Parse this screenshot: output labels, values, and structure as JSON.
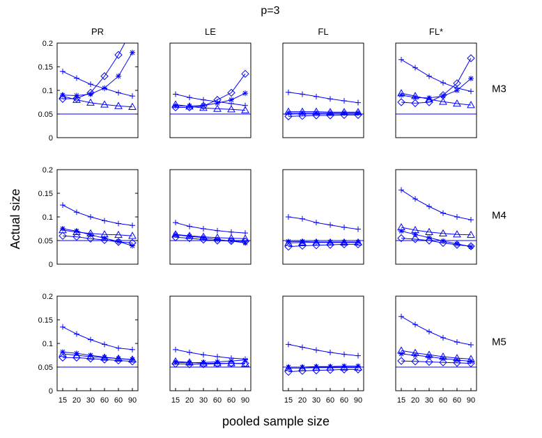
{
  "chart_data": {
    "type": "line",
    "title": "p=3",
    "xlabel": "pooled sample size",
    "ylabel": "Actual size",
    "columns": [
      "PR",
      "LE",
      "FL",
      "FL*"
    ],
    "rows": [
      "M3",
      "M4",
      "M5"
    ],
    "x_ticks": [
      "15",
      "20",
      "30",
      "60",
      "60",
      "90"
    ],
    "y_ticks": [
      "0",
      "0.05",
      "0.1",
      "0.15",
      "0.2"
    ],
    "ylim": [
      0,
      0.2
    ],
    "reference_line": 0.05,
    "series_markers": [
      "plus",
      "asterisk",
      "diamond",
      "triangle"
    ],
    "line_color": "#0000ff",
    "panels": [
      {
        "row": "M3",
        "col": "PR",
        "series": [
          {
            "marker": "plus",
            "values": [
              0.14,
              0.126,
              0.113,
              0.104,
              0.095,
              0.088
            ]
          },
          {
            "marker": "asterisk",
            "values": [
              0.09,
              0.089,
              0.092,
              0.105,
              0.13,
              0.18
            ]
          },
          {
            "marker": "diamond",
            "values": [
              0.082,
              0.083,
              0.095,
              0.13,
              0.175,
              0.23
            ]
          },
          {
            "marker": "triangle",
            "values": [
              0.088,
              0.08,
              0.074,
              0.07,
              0.067,
              0.065
            ]
          }
        ]
      },
      {
        "row": "M3",
        "col": "LE",
        "series": [
          {
            "marker": "plus",
            "values": [
              0.092,
              0.085,
              0.08,
              0.076,
              0.072,
              0.068
            ]
          },
          {
            "marker": "asterisk",
            "values": [
              0.067,
              0.067,
              0.068,
              0.073,
              0.08,
              0.094
            ]
          },
          {
            "marker": "diamond",
            "values": [
              0.064,
              0.064,
              0.067,
              0.08,
              0.095,
              0.135
            ]
          },
          {
            "marker": "triangle",
            "values": [
              0.07,
              0.066,
              0.063,
              0.061,
              0.06,
              0.058
            ]
          }
        ]
      },
      {
        "row": "M3",
        "col": "FL",
        "series": [
          {
            "marker": "plus",
            "values": [
              0.096,
              0.092,
              0.087,
              0.082,
              0.078,
              0.074
            ]
          },
          {
            "marker": "asterisk",
            "values": [
              0.052,
              0.052,
              0.052,
              0.052,
              0.052,
              0.052
            ]
          },
          {
            "marker": "diamond",
            "values": [
              0.045,
              0.046,
              0.047,
              0.047,
              0.048,
              0.048
            ]
          },
          {
            "marker": "triangle",
            "values": [
              0.055,
              0.055,
              0.055,
              0.054,
              0.054,
              0.054
            ]
          }
        ]
      },
      {
        "row": "M3",
        "col": "FL*",
        "series": [
          {
            "marker": "plus",
            "values": [
              0.165,
              0.148,
              0.13,
              0.116,
              0.105,
              0.098
            ]
          },
          {
            "marker": "asterisk",
            "values": [
              0.09,
              0.085,
              0.084,
              0.088,
              0.1,
              0.125
            ]
          },
          {
            "marker": "diamond",
            "values": [
              0.075,
              0.073,
              0.075,
              0.09,
              0.115,
              0.168
            ]
          },
          {
            "marker": "triangle",
            "values": [
              0.094,
              0.088,
              0.081,
              0.076,
              0.072,
              0.069
            ]
          }
        ]
      },
      {
        "row": "M4",
        "col": "PR",
        "series": [
          {
            "marker": "plus",
            "values": [
              0.125,
              0.11,
              0.1,
              0.092,
              0.086,
              0.082
            ]
          },
          {
            "marker": "asterisk",
            "values": [
              0.075,
              0.07,
              0.062,
              0.055,
              0.048,
              0.039
            ]
          },
          {
            "marker": "diamond",
            "values": [
              0.06,
              0.058,
              0.054,
              0.051,
              0.047,
              0.045
            ]
          },
          {
            "marker": "triangle",
            "values": [
              0.072,
              0.068,
              0.065,
              0.063,
              0.062,
              0.06
            ]
          }
        ]
      },
      {
        "row": "M4",
        "col": "LE",
        "series": [
          {
            "marker": "plus",
            "values": [
              0.088,
              0.08,
              0.075,
              0.071,
              0.068,
              0.066
            ]
          },
          {
            "marker": "asterisk",
            "values": [
              0.062,
              0.059,
              0.056,
              0.052,
              0.049,
              0.045
            ]
          },
          {
            "marker": "diamond",
            "values": [
              0.057,
              0.055,
              0.052,
              0.05,
              0.049,
              0.048
            ]
          },
          {
            "marker": "triangle",
            "values": [
              0.063,
              0.06,
              0.058,
              0.056,
              0.055,
              0.054
            ]
          }
        ]
      },
      {
        "row": "M4",
        "col": "FL",
        "series": [
          {
            "marker": "plus",
            "values": [
              0.1,
              0.096,
              0.088,
              0.083,
              0.078,
              0.074
            ]
          },
          {
            "marker": "asterisk",
            "values": [
              0.048,
              0.048,
              0.047,
              0.047,
              0.047,
              0.047
            ]
          },
          {
            "marker": "diamond",
            "values": [
              0.037,
              0.039,
              0.04,
              0.041,
              0.042,
              0.042
            ]
          },
          {
            "marker": "triangle",
            "values": [
              0.045,
              0.046,
              0.046,
              0.046,
              0.046,
              0.046
            ]
          }
        ]
      },
      {
        "row": "M4",
        "col": "FL*",
        "series": [
          {
            "marker": "plus",
            "values": [
              0.157,
              0.138,
              0.122,
              0.108,
              0.1,
              0.094
            ]
          },
          {
            "marker": "asterisk",
            "values": [
              0.07,
              0.063,
              0.056,
              0.049,
              0.043,
              0.037
            ]
          },
          {
            "marker": "diamond",
            "values": [
              0.055,
              0.053,
              0.05,
              0.045,
              0.041,
              0.038
            ]
          },
          {
            "marker": "triangle",
            "values": [
              0.078,
              0.072,
              0.068,
              0.065,
              0.063,
              0.062
            ]
          }
        ]
      },
      {
        "row": "M5",
        "col": "PR",
        "series": [
          {
            "marker": "plus",
            "values": [
              0.135,
              0.12,
              0.108,
              0.098,
              0.09,
              0.087
            ]
          },
          {
            "marker": "asterisk",
            "values": [
              0.082,
              0.079,
              0.075,
              0.071,
              0.068,
              0.066
            ]
          },
          {
            "marker": "diamond",
            "values": [
              0.07,
              0.07,
              0.068,
              0.066,
              0.064,
              0.062
            ]
          },
          {
            "marker": "triangle",
            "values": [
              0.078,
              0.075,
              0.072,
              0.07,
              0.068,
              0.066
            ]
          }
        ]
      },
      {
        "row": "M5",
        "col": "LE",
        "series": [
          {
            "marker": "plus",
            "values": [
              0.087,
              0.081,
              0.076,
              0.072,
              0.069,
              0.067
            ]
          },
          {
            "marker": "asterisk",
            "values": [
              0.06,
              0.059,
              0.06,
              0.061,
              0.063,
              0.065
            ]
          },
          {
            "marker": "diamond",
            "values": [
              0.057,
              0.056,
              0.056,
              0.057,
              0.058,
              0.058
            ]
          },
          {
            "marker": "triangle",
            "values": [
              0.062,
              0.06,
              0.058,
              0.058,
              0.058,
              0.057
            ]
          }
        ]
      },
      {
        "row": "M5",
        "col": "FL",
        "series": [
          {
            "marker": "plus",
            "values": [
              0.098,
              0.092,
              0.086,
              0.081,
              0.077,
              0.074
            ]
          },
          {
            "marker": "asterisk",
            "values": [
              0.05,
              0.05,
              0.051,
              0.051,
              0.052,
              0.052
            ]
          },
          {
            "marker": "diamond",
            "values": [
              0.04,
              0.042,
              0.043,
              0.044,
              0.045,
              0.045
            ]
          },
          {
            "marker": "triangle",
            "values": [
              0.048,
              0.048,
              0.049,
              0.049,
              0.049,
              0.049
            ]
          }
        ]
      },
      {
        "row": "M5",
        "col": "FL*",
        "series": [
          {
            "marker": "plus",
            "values": [
              0.157,
              0.14,
              0.125,
              0.112,
              0.103,
              0.097
            ]
          },
          {
            "marker": "asterisk",
            "values": [
              0.078,
              0.075,
              0.072,
              0.068,
              0.065,
              0.062
            ]
          },
          {
            "marker": "diamond",
            "values": [
              0.063,
              0.062,
              0.061,
              0.06,
              0.059,
              0.058
            ]
          },
          {
            "marker": "triangle",
            "values": [
              0.085,
              0.08,
              0.076,
              0.072,
              0.069,
              0.067
            ]
          }
        ]
      }
    ]
  }
}
